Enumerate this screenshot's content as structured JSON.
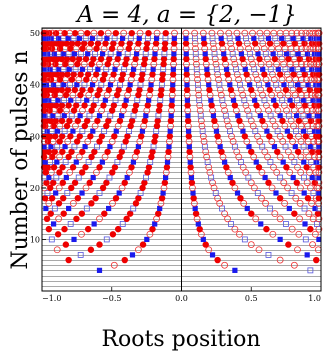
{
  "chart_data": {
    "type": "scatter",
    "title": "A = 4,    a = {2, −1}",
    "xlabel": "Roots position",
    "ylabel": "Number of pulses n",
    "xlim": [
      -1.0,
      1.0
    ],
    "ylim": [
      0,
      51
    ],
    "xticks": [
      -1.0,
      -0.5,
      0.0,
      0.5,
      1.0
    ],
    "xtick_labels": [
      "−1.0",
      "−0.5",
      "0.0",
      "0.5",
      "1.0"
    ],
    "yticks": [
      10,
      20,
      30,
      40,
      50
    ],
    "ytick_labels": [
      "10",
      "20",
      "30",
      "40",
      "50"
    ],
    "grid": "horizontal line at every integer n",
    "n_range": [
      4,
      50
    ],
    "series": [
      {
        "marker": "filled-circle",
        "color": "#ee0000",
        "n_mod": 3,
        "offset": 0
      },
      {
        "marker": "filled-square",
        "color": "#1a1aee",
        "n_mod": 3,
        "offset": 1
      },
      {
        "marker": "open-square",
        "color": "#5555dd",
        "n_mod": 3,
        "offset": 1
      },
      {
        "marker": "open-circle",
        "color": "#ee3333",
        "n_mod": 3,
        "offset": 2
      }
    ],
    "colors": {
      "red": "#ee0000",
      "blue": "#1a1aee",
      "grid": "#555555"
    }
  }
}
